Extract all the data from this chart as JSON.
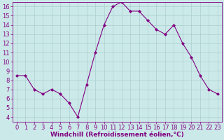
{
  "x": [
    0,
    1,
    2,
    3,
    4,
    5,
    6,
    7,
    8,
    9,
    10,
    11,
    12,
    13,
    14,
    15,
    16,
    17,
    18,
    19,
    20,
    21,
    22,
    23
  ],
  "y": [
    8.5,
    8.5,
    7.0,
    6.5,
    7.0,
    6.5,
    5.5,
    4.0,
    7.5,
    11.0,
    14.0,
    16.0,
    16.5,
    15.5,
    15.5,
    14.5,
    13.5,
    13.0,
    14.0,
    12.0,
    10.5,
    8.5,
    7.0,
    6.5
  ],
  "line_color": "#800080",
  "marker": "D",
  "marker_size": 2,
  "bg_color": "#cce9e9",
  "grid_color": "#aacfcf",
  "xlabel": "Windchill (Refroidissement éolien,°C)",
  "xlim": [
    -0.5,
    23.5
  ],
  "ylim": [
    3.5,
    16.5
  ],
  "xticks": [
    0,
    1,
    2,
    3,
    4,
    5,
    6,
    7,
    8,
    9,
    10,
    11,
    12,
    13,
    14,
    15,
    16,
    17,
    18,
    19,
    20,
    21,
    22,
    23
  ],
  "yticks": [
    4,
    5,
    6,
    7,
    8,
    9,
    10,
    11,
    12,
    13,
    14,
    15,
    16
  ],
  "axis_label_color": "#800080",
  "tick_label_color": "#800080",
  "xlabel_fontsize": 6.5,
  "tick_fontsize": 6.0,
  "linewidth": 0.8
}
